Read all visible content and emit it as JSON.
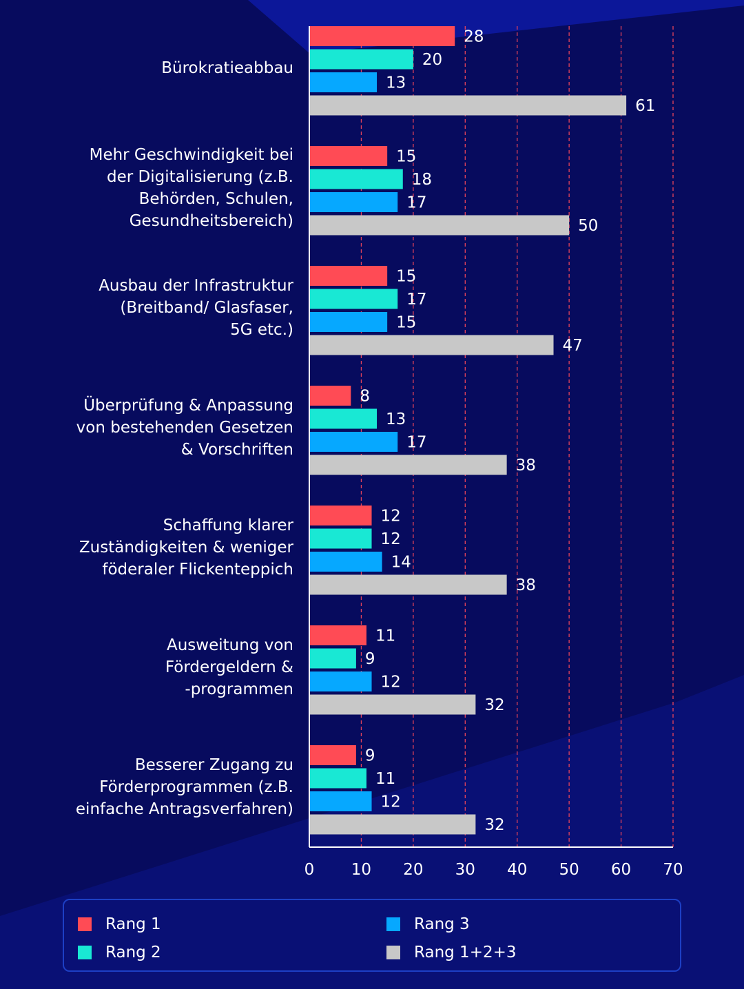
{
  "colors": {
    "background": "#070b5e",
    "grid": "#e8435a",
    "axis": "#ffffff"
  },
  "chart_data": {
    "type": "bar",
    "orientation": "horizontal",
    "categories": [
      "Bürokratieabbau",
      "Mehr Geschwindigkeit bei\nder Digitalisierung (z.B.\nBehörden, Schulen,\nGesundheitsbereich)",
      "Ausbau der Infrastruktur\n(Breitband/ Glasfaser,\n5G etc.)",
      "Überprüfung & Anpassung\nvon bestehenden Gesetzen\n& Vorschriften",
      "Schaffung klarer\nZuständigkeiten & weniger\nföderaler Flickenteppich",
      "Ausweitung von\nFördergeldern &\n-programmen",
      "Besserer Zugang zu\nFörderprogrammen (z.B.\neinfache Antragsverfahren)"
    ],
    "series": [
      {
        "name": "Rang 1",
        "color": "#ff4b55",
        "values": [
          28,
          15,
          15,
          8,
          12,
          11,
          9
        ]
      },
      {
        "name": "Rang 2",
        "color": "#19e8d4",
        "values": [
          20,
          18,
          17,
          13,
          12,
          9,
          11
        ]
      },
      {
        "name": "Rang 3",
        "color": "#06a8ff",
        "values": [
          13,
          17,
          15,
          17,
          14,
          12,
          12
        ]
      },
      {
        "name": "Rang 1+2+3",
        "color": "#c8c8c8",
        "values": [
          61,
          50,
          47,
          38,
          38,
          32,
          32
        ]
      }
    ],
    "xlim": [
      0,
      70
    ],
    "xticks": [
      "0",
      "10",
      "20",
      "30",
      "40",
      "50",
      "60",
      "70"
    ],
    "grid": "vertical dashed",
    "legend_position": "bottom"
  },
  "legend": {
    "items": [
      {
        "label": "Rang 1",
        "color": "#ff4b55"
      },
      {
        "label": "Rang 2",
        "color": "#19e8d4"
      },
      {
        "label": "Rang 3",
        "color": "#06a8ff"
      },
      {
        "label": "Rang 1+2+3",
        "color": "#c8c8c8"
      }
    ]
  }
}
